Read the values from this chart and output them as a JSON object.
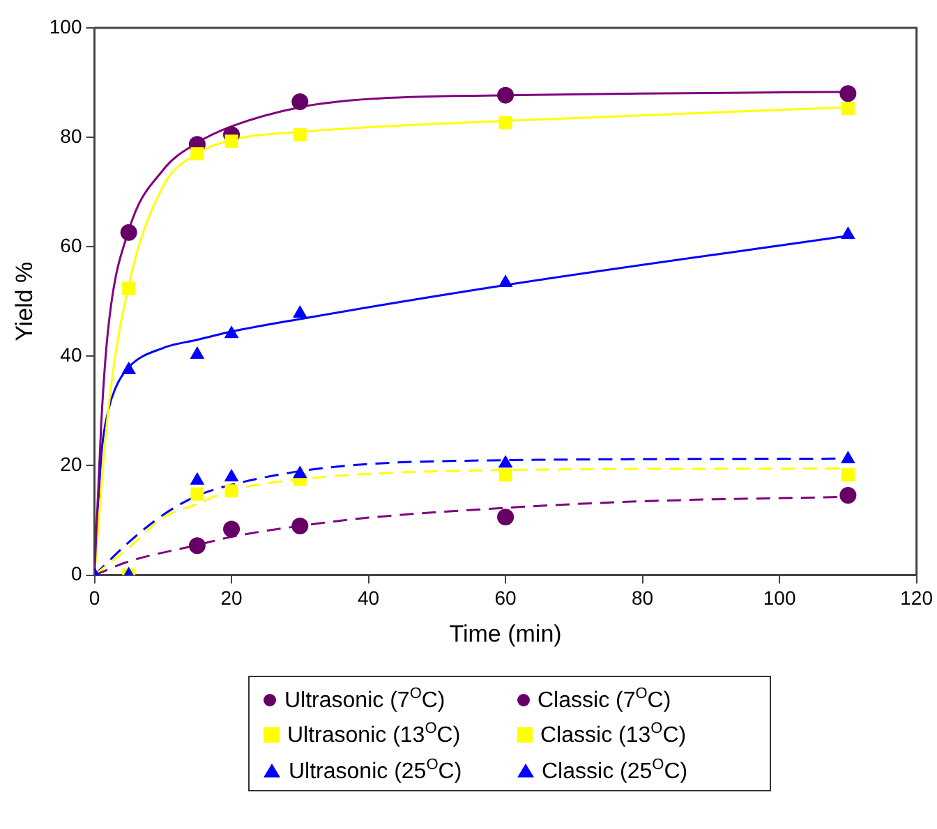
{
  "chart_data": {
    "type": "scatter",
    "xlabel": "Time (min)",
    "ylabel": "Yield %",
    "xlim": [
      0,
      120
    ],
    "xticks": [
      0,
      20,
      40,
      60,
      80,
      100,
      120
    ],
    "ylim": [
      0,
      100
    ],
    "yticks": [
      0,
      20,
      40,
      60,
      80,
      100
    ],
    "grid": false,
    "legend": "bottom",
    "series": [
      {
        "name": "Ultrasonic (7$^{O}$C)",
        "color": "#660066",
        "marker": "circle",
        "x": [
          5,
          15,
          20,
          30,
          60,
          110
        ],
        "values": [
          62.6,
          78.7,
          80.5,
          86.5,
          87.7,
          88
        ]
      },
      {
        "name": "Classic (7$^{O}$C)",
        "color": "#660066",
        "marker": "circle",
        "x": [
          15,
          20,
          30,
          60,
          110
        ],
        "values": [
          5.4,
          8.4,
          9,
          10.6,
          14.6
        ]
      },
      {
        "name": "Ultrasonic (13$^{O}$C)",
        "color": "#ffff00",
        "marker": "square",
        "x": [
          5,
          15,
          20,
          30,
          60,
          110
        ],
        "values": [
          52.4,
          77,
          79.3,
          80.5,
          82.7,
          85.3
        ]
      },
      {
        "name": "Classic (13$^{O}$C)",
        "color": "#ffff00",
        "marker": "square",
        "x": [
          5,
          15,
          20,
          30,
          60,
          110
        ],
        "values": [
          0,
          14.8,
          15.4,
          17.5,
          18.3,
          18.3
        ]
      },
      {
        "name": "Ultrasonic (25$^{O}$C)",
        "color": "#0000ff",
        "marker": "triangle",
        "x": [
          0,
          5,
          15,
          20,
          30,
          60,
          110
        ],
        "values": [
          0,
          37.5,
          40.3,
          44.1,
          47.8,
          53.4,
          62.2
        ]
      },
      {
        "name": "Classic (25$^{O}$C)",
        "color": "#0000ff",
        "marker": "triangle",
        "x": [
          5,
          15,
          20,
          30,
          60,
          110
        ],
        "values": [
          0,
          17.3,
          17.9,
          18.5,
          20.4,
          21.2
        ]
      },
      {
        "type": "line",
        "color": "#800080",
        "marker": "none",
        "line_style": "solid",
        "x": [
          0,
          1,
          2,
          5,
          10,
          15,
          20,
          30,
          40,
          60,
          80,
          110
        ],
        "values": [
          0,
          28,
          45,
          63,
          74,
          79,
          82,
          85.5,
          87,
          87.7,
          88,
          88.3
        ]
      },
      {
        "type": "line",
        "color": "#ffff00",
        "marker": "none",
        "line_style": "solid",
        "x": [
          0,
          2,
          5,
          10,
          15,
          20,
          30,
          60,
          110
        ],
        "values": [
          0,
          30,
          53,
          71,
          77,
          79.5,
          81,
          83,
          85.5
        ]
      },
      {
        "type": "line",
        "color": "#0000ff",
        "marker": "none",
        "line_style": "solid",
        "x": [
          0,
          1,
          2,
          3,
          5,
          10,
          15,
          20,
          30,
          60,
          110
        ],
        "values": [
          0,
          22,
          30,
          34,
          38,
          41.5,
          43,
          44.5,
          46.8,
          53,
          62
        ]
      },
      {
        "type": "line",
        "color": "#800080",
        "marker": "none",
        "line_style": "dashed",
        "x": [
          0,
          5,
          15,
          20,
          30,
          40,
          60,
          80,
          110
        ],
        "values": [
          0,
          2.5,
          5.5,
          7,
          9,
          10.5,
          12.3,
          13.5,
          14.3
        ]
      },
      {
        "type": "line",
        "color": "#ffff00",
        "marker": "none",
        "line_style": "dashed",
        "x": [
          0,
          5,
          10,
          15,
          20,
          30,
          40,
          60,
          110
        ],
        "values": [
          0,
          5,
          10.5,
          13,
          15.5,
          17.5,
          18.5,
          19.2,
          19.5
        ]
      },
      {
        "type": "line",
        "color": "#0000ff",
        "marker": "none",
        "line_style": "dashed",
        "x": [
          0,
          5,
          10,
          15,
          20,
          30,
          40,
          60,
          110
        ],
        "values": [
          0,
          6,
          11,
          14.5,
          16.5,
          19,
          20.3,
          21,
          21.3
        ]
      }
    ]
  }
}
